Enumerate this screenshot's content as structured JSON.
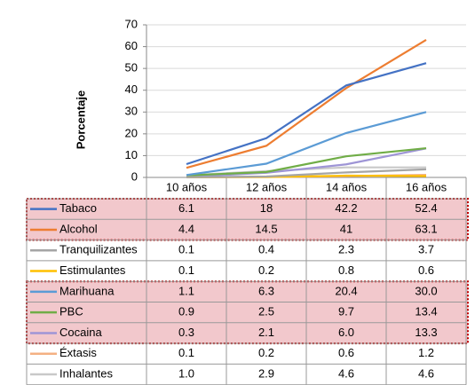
{
  "chart_data": {
    "type": "line",
    "y_label": "Porcentaje",
    "categories": [
      "10 años",
      "12 años",
      "14 años",
      "16 años"
    ],
    "ylim": [
      0,
      70
    ],
    "yticks": [
      0,
      10,
      20,
      30,
      40,
      50,
      60,
      70
    ],
    "series": [
      {
        "name": "Tabaco",
        "color": "#4472c4",
        "values": [
          6.1,
          18,
          42.2,
          52.4
        ],
        "value_labels": [
          "6.1",
          "18",
          "42.2",
          "52.4"
        ]
      },
      {
        "name": "Alcohol",
        "color": "#ed7d31",
        "values": [
          4.4,
          14.5,
          41,
          63.1
        ],
        "value_labels": [
          "4.4",
          "14.5",
          "41",
          "63.1"
        ]
      },
      {
        "name": "Tranquilizantes",
        "color": "#a5a5a5",
        "values": [
          0.1,
          0.4,
          2.3,
          3.7
        ],
        "value_labels": [
          "0.1",
          "0.4",
          "2.3",
          "3.7"
        ]
      },
      {
        "name": "Estimulantes",
        "color": "#ffc000",
        "values": [
          0.1,
          0.2,
          0.8,
          0.6
        ],
        "value_labels": [
          "0.1",
          "0.2",
          "0.8",
          "0.6"
        ]
      },
      {
        "name": "Marihuana",
        "color": "#5b9bd5",
        "values": [
          1.1,
          6.3,
          20.4,
          30.0
        ],
        "value_labels": [
          "1.1",
          "6.3",
          "20.4",
          "30.0"
        ]
      },
      {
        "name": "PBC",
        "color": "#70ad47",
        "values": [
          0.9,
          2.5,
          9.7,
          13.4
        ],
        "value_labels": [
          "0.9",
          "2.5",
          "9.7",
          "13.4"
        ]
      },
      {
        "name": "Cocaina",
        "color": "#9e95d6",
        "values": [
          0.3,
          2.1,
          6.0,
          13.3
        ],
        "value_labels": [
          "0.3",
          "2.1",
          "6.0",
          "13.3"
        ]
      },
      {
        "name": "Éxtasis",
        "color": "#f4b183",
        "values": [
          0.1,
          0.2,
          0.6,
          1.2
        ],
        "value_labels": [
          "0.1",
          "0.2",
          "0.6",
          "1.2"
        ]
      },
      {
        "name": "Inhalantes",
        "color": "#c9c9c9",
        "values": [
          1.0,
          2.9,
          4.6,
          4.6
        ],
        "value_labels": [
          "1.0",
          "2.9",
          "4.6",
          "4.6"
        ]
      }
    ]
  }
}
